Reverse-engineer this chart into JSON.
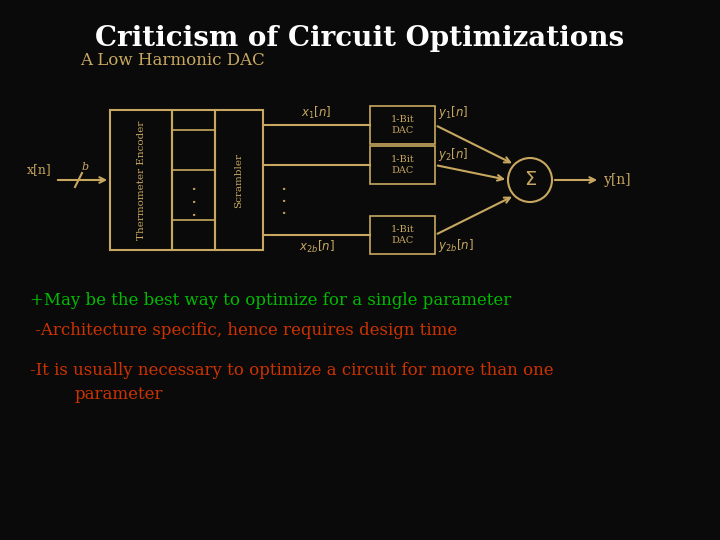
{
  "title": "Criticism of Circuit Optimizations",
  "title_color": "#FFFFFF",
  "title_fontsize": 20,
  "bg_color": "#0A0A0A",
  "subtitle": "A Low Harmonic DAC",
  "subtitle_color": "#C8A860",
  "subtitle_fontsize": 12,
  "diagram_color": "#C8A860",
  "bullet1_text": "+May be the best way to optimize for a single parameter",
  "bullet1_color": "#00BB00",
  "bullet2_text": " -Architecture specific, hence requires design time",
  "bullet2_color": "#CC3300",
  "bullet3_line1": "-It is usually necessary to optimize a circuit for more than one",
  "bullet3_line2": "        parameter",
  "bullet3_color": "#CC3300",
  "bullet_fontsize": 12
}
